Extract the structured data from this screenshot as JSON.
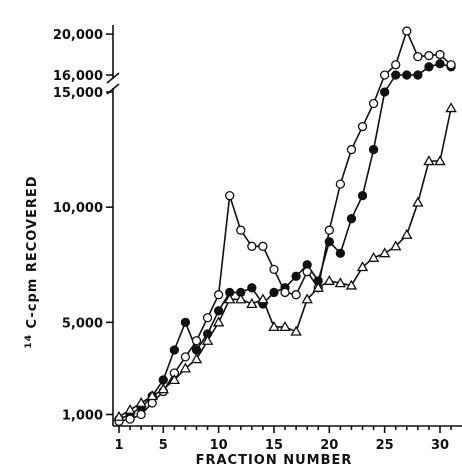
{
  "chart_data": {
    "type": "line",
    "xlabel": "FRACTION NUMBER",
    "ylabel_sup": "14",
    "ylabel_main": "C-cpm RECOVERED",
    "x_ticks": [
      1,
      5,
      10,
      15,
      20,
      25,
      30
    ],
    "y_ticks_lower": [
      {
        "value": 1000,
        "label": "1,000"
      },
      {
        "value": 5000,
        "label": "5,000"
      },
      {
        "value": 10000,
        "label": "10,000"
      },
      {
        "value": 15000,
        "label": "15,000"
      }
    ],
    "y_ticks_upper": [
      {
        "value": 16000,
        "label": "16,000"
      },
      {
        "value": 20000,
        "label": "20,000"
      }
    ],
    "xlim": [
      0,
      31
    ],
    "ylim_lower": [
      500,
      15000
    ],
    "ylim_upper": [
      16000,
      20500
    ],
    "axis_break": true,
    "grid": false,
    "legend": "none",
    "series": [
      {
        "marker": "filled-circle",
        "x": [
          1,
          2,
          3,
          4,
          5,
          6,
          7,
          8,
          9,
          10,
          11,
          12,
          13,
          14,
          15,
          16,
          17,
          18,
          19,
          20,
          21,
          22,
          23,
          24,
          25,
          26,
          27,
          28,
          29,
          30,
          31
        ],
        "y": [
          800,
          1000,
          1300,
          1800,
          2500,
          3800,
          5000,
          3800,
          4500,
          5500,
          6300,
          6300,
          6500,
          5800,
          6300,
          6500,
          7000,
          7500,
          6800,
          8500,
          8000,
          9500,
          10500,
          12500,
          15000,
          15200,
          15500,
          15700,
          16800,
          17100,
          16800
        ]
      },
      {
        "marker": "open-circle",
        "x": [
          1,
          2,
          3,
          4,
          5,
          6,
          7,
          8,
          9,
          10,
          11,
          12,
          13,
          14,
          15,
          16,
          17,
          18,
          19,
          20,
          21,
          22,
          23,
          24,
          25,
          26,
          27,
          28,
          29,
          30,
          31
        ],
        "y": [
          700,
          800,
          1000,
          1500,
          2000,
          2800,
          3500,
          4200,
          5200,
          6200,
          10500,
          9000,
          8300,
          8300,
          7300,
          6300,
          6200,
          7200,
          6500,
          9000,
          11000,
          12500,
          13500,
          14500,
          15200,
          17000,
          20300,
          17800,
          17900,
          18000,
          17000
        ]
      },
      {
        "marker": "open-triangle",
        "x": [
          1,
          2,
          3,
          4,
          5,
          6,
          7,
          8,
          9,
          10,
          11,
          12,
          13,
          14,
          15,
          16,
          17,
          18,
          19,
          20,
          21,
          22,
          23,
          24,
          25,
          26,
          27,
          28,
          29,
          30,
          31
        ],
        "y": [
          900,
          1200,
          1500,
          1800,
          2100,
          2500,
          3000,
          3400,
          4200,
          5000,
          6000,
          6000,
          5800,
          6000,
          4800,
          4800,
          4600,
          6000,
          6500,
          6800,
          6700,
          6600,
          7400,
          7800,
          8000,
          8300,
          8800,
          10200,
          12000,
          12000,
          14300
        ]
      }
    ]
  }
}
